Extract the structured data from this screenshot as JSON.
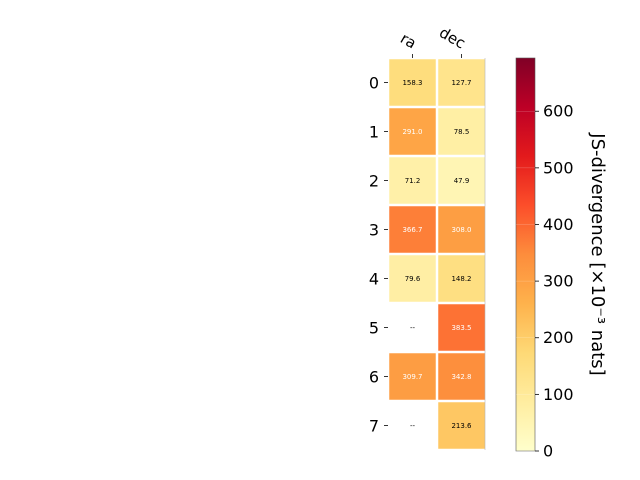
{
  "chart_data": {
    "type": "heatmap",
    "columns": [
      "ra",
      "dec"
    ],
    "rows": [
      "0",
      "1",
      "2",
      "3",
      "4",
      "5",
      "6",
      "7"
    ],
    "values": [
      [
        158.3,
        127.7
      ],
      [
        291.0,
        78.5
      ],
      [
        71.2,
        47.9
      ],
      [
        366.7,
        308.0
      ],
      [
        79.6,
        148.2
      ],
      [
        null,
        383.5
      ],
      [
        309.7,
        342.8
      ],
      [
        null,
        213.6
      ]
    ],
    "cell_labels": [
      [
        "158.3",
        "127.7"
      ],
      [
        "291.0",
        "78.5"
      ],
      [
        "71.2",
        "47.9"
      ],
      [
        "366.7",
        "308.0"
      ],
      [
        "79.6",
        "148.2"
      ],
      [
        "--",
        "383.5"
      ],
      [
        "309.7",
        "342.8"
      ],
      [
        "--",
        "213.6"
      ]
    ],
    "missing_label": "--",
    "colorbar": {
      "label": "JS-divergence [×10⁻³ nats]",
      "min": 0,
      "max": 694,
      "ticks": [
        0,
        100,
        200,
        300,
        400,
        500,
        600
      ],
      "colormap": "YlOrRd"
    },
    "grid": false,
    "colormap_stops": [
      "#ffffcc",
      "#ffeda0",
      "#fed976",
      "#feb24c",
      "#fd8d3c",
      "#fc4e2a",
      "#e31a1c",
      "#bd0026",
      "#800026"
    ]
  }
}
